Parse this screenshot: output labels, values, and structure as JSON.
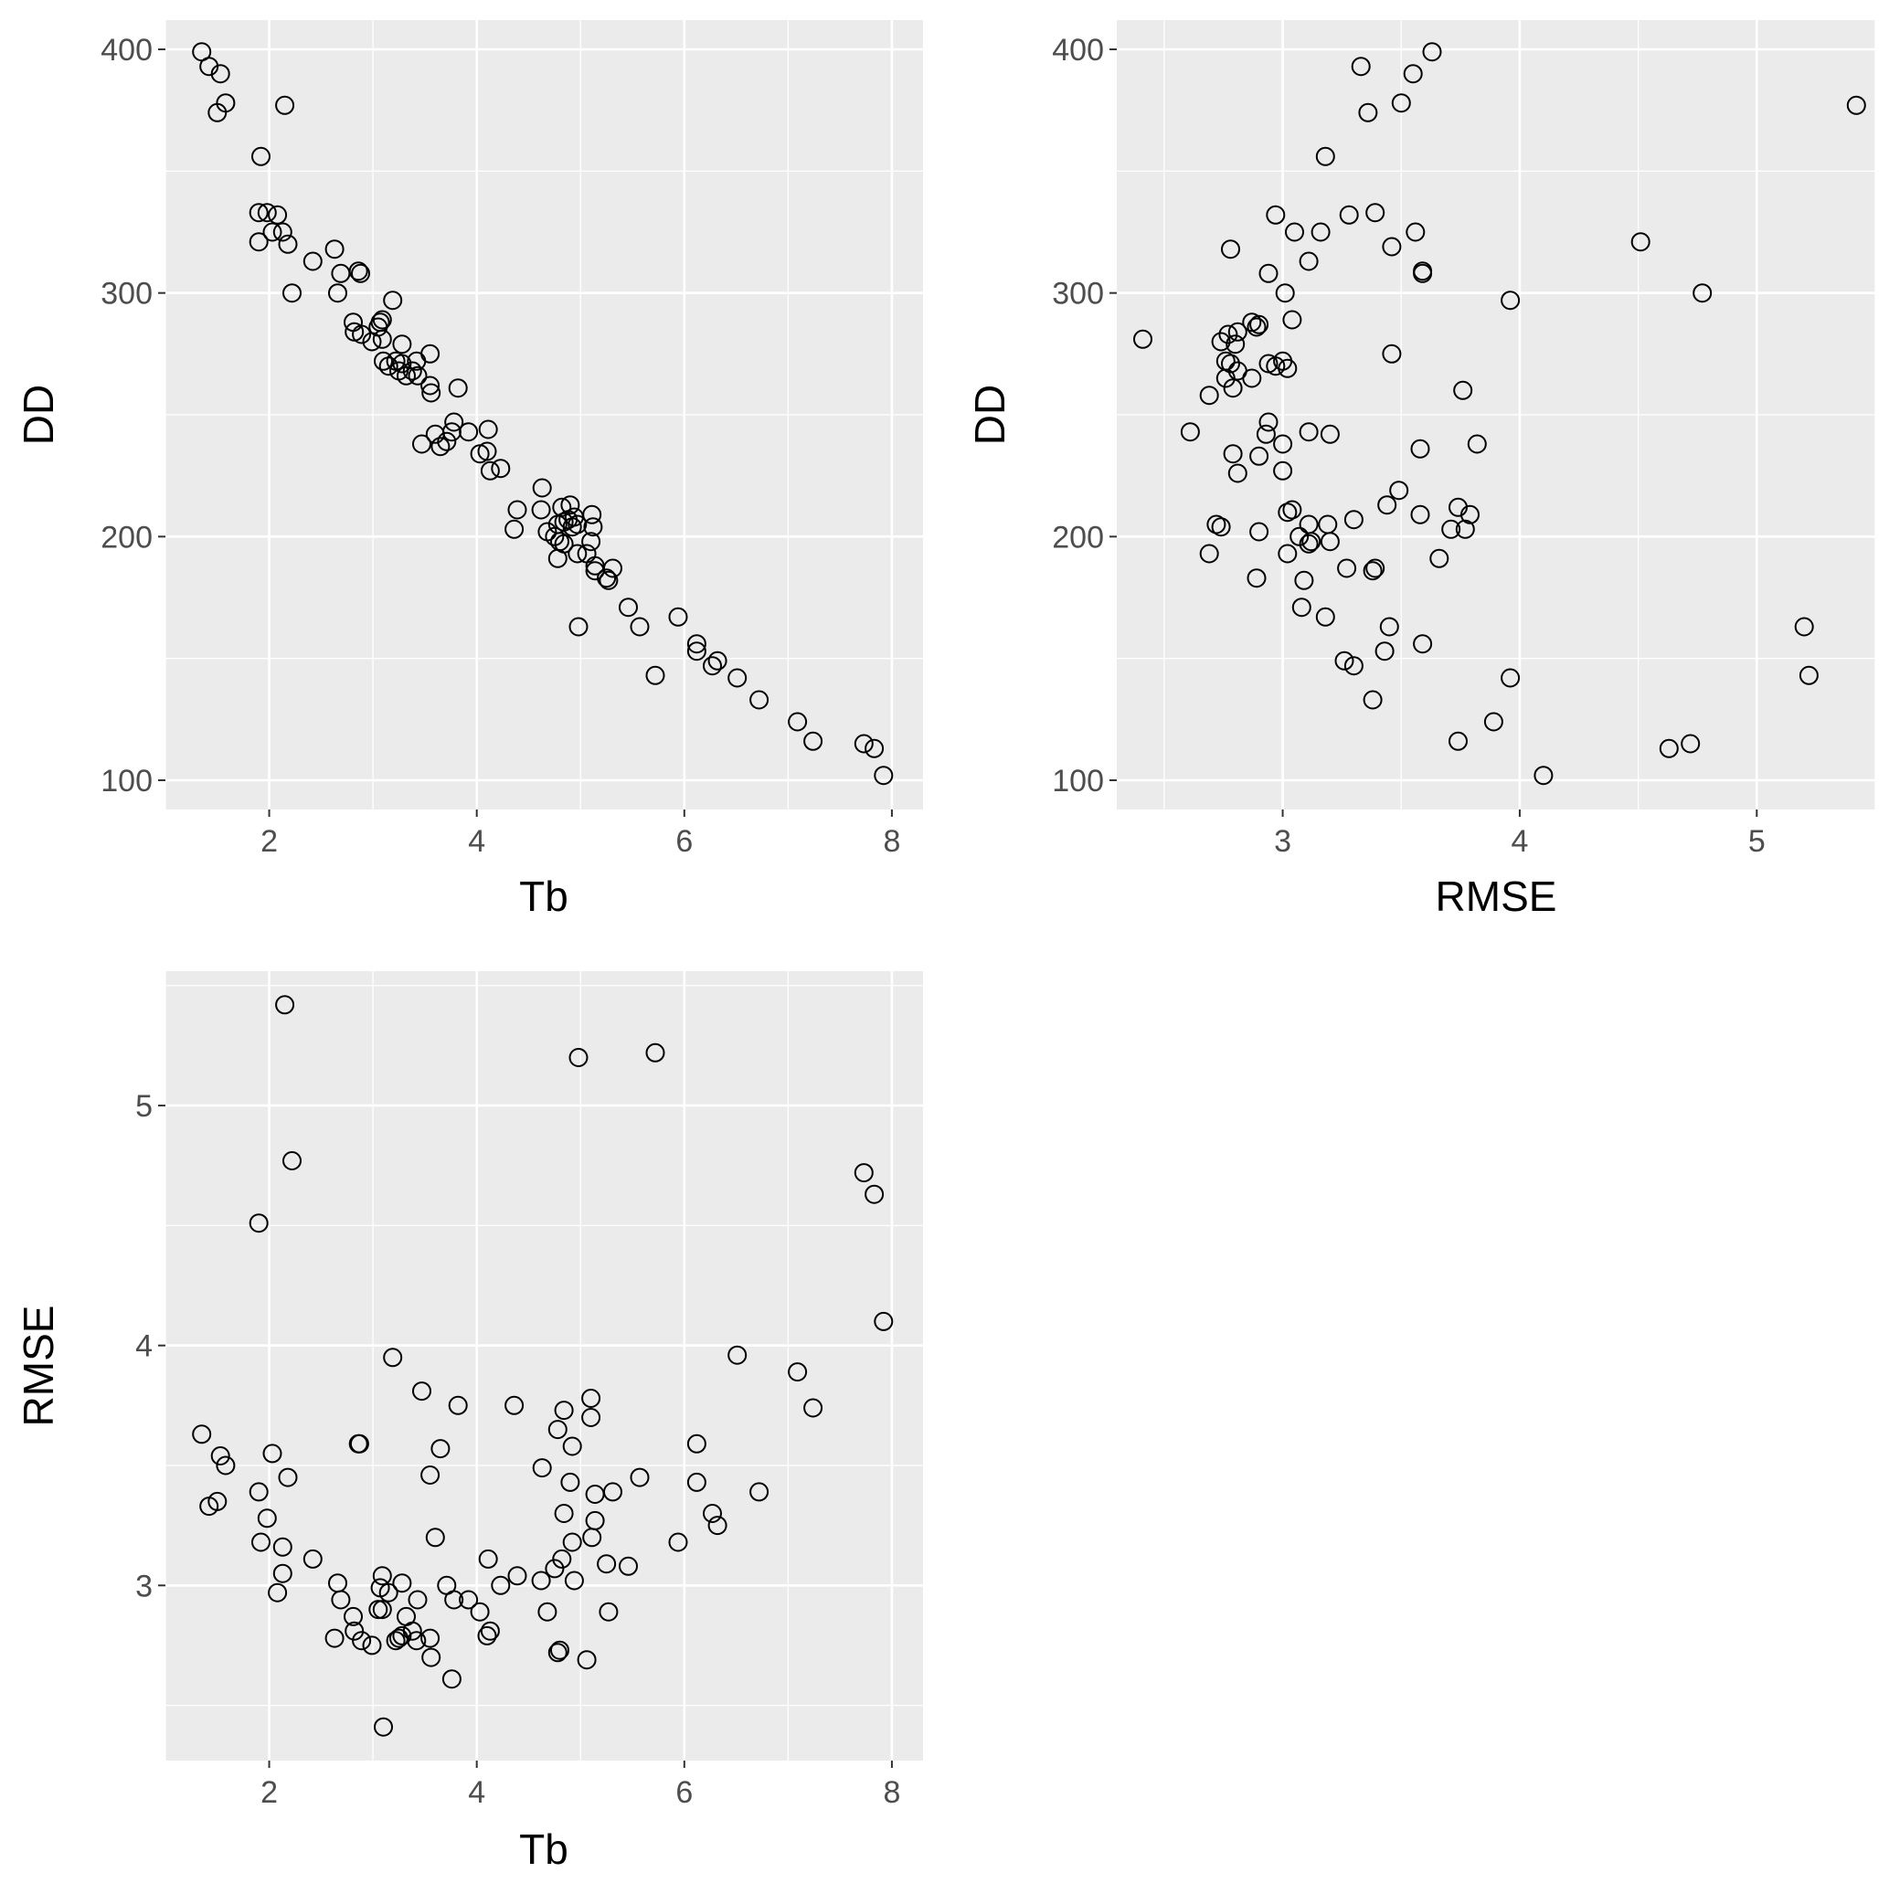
{
  "chart_data": [
    {
      "type": "scatter",
      "title": "",
      "xlabel": "Tb",
      "ylabel": "DD",
      "xlim": [
        1.0,
        8.3
      ],
      "ylim": [
        88,
        412
      ],
      "x_ticks": [
        2,
        4,
        6,
        8
      ],
      "y_ticks": [
        100,
        200,
        300,
        400
      ],
      "grid": true,
      "points": [
        [
          1.35,
          399
        ],
        [
          1.42,
          393
        ],
        [
          1.5,
          374
        ],
        [
          1.53,
          390
        ],
        [
          1.58,
          378
        ],
        [
          2.15,
          377
        ],
        [
          1.92,
          356
        ],
        [
          1.9,
          333
        ],
        [
          1.98,
          333
        ],
        [
          2.08,
          332
        ],
        [
          2.03,
          325
        ],
        [
          2.13,
          325
        ],
        [
          1.9,
          321
        ],
        [
          2.18,
          320
        ],
        [
          2.42,
          313
        ],
        [
          2.63,
          318
        ],
        [
          2.69,
          308
        ],
        [
          2.86,
          309
        ],
        [
          2.88,
          308
        ],
        [
          2.22,
          300
        ],
        [
          2.66,
          300
        ],
        [
          2.81,
          288
        ],
        [
          3.07,
          288
        ],
        [
          3.09,
          289
        ],
        [
          3.05,
          286
        ],
        [
          3.19,
          297
        ],
        [
          2.82,
          284
        ],
        [
          2.89,
          283
        ],
        [
          2.99,
          280
        ],
        [
          3.09,
          281
        ],
        [
          3.28,
          279
        ],
        [
          3.55,
          275
        ],
        [
          3.22,
          272
        ],
        [
          3.1,
          272
        ],
        [
          3.15,
          270
        ],
        [
          3.28,
          271
        ],
        [
          3.25,
          268
        ],
        [
          3.32,
          266
        ],
        [
          3.38,
          268
        ],
        [
          3.42,
          272
        ],
        [
          3.43,
          266
        ],
        [
          3.55,
          262
        ],
        [
          3.56,
          259
        ],
        [
          3.82,
          261
        ],
        [
          3.78,
          247
        ],
        [
          3.76,
          243
        ],
        [
          3.6,
          242
        ],
        [
          3.92,
          243
        ],
        [
          4.11,
          244
        ],
        [
          3.47,
          238
        ],
        [
          3.65,
          237
        ],
        [
          3.71,
          239
        ],
        [
          4.03,
          234
        ],
        [
          4.1,
          235
        ],
        [
          4.13,
          227
        ],
        [
          4.23,
          228
        ],
        [
          4.63,
          220
        ],
        [
          4.39,
          211
        ],
        [
          4.62,
          211
        ],
        [
          4.82,
          212
        ],
        [
          4.9,
          213
        ],
        [
          4.94,
          208
        ],
        [
          5.11,
          209
        ],
        [
          4.78,
          205
        ],
        [
          4.84,
          206
        ],
        [
          4.88,
          207
        ],
        [
          4.92,
          204
        ],
        [
          4.97,
          205
        ],
        [
          5.12,
          204
        ],
        [
          4.36,
          203
        ],
        [
          4.68,
          202
        ],
        [
          4.75,
          200
        ],
        [
          4.8,
          198
        ],
        [
          4.84,
          197
        ],
        [
          5.1,
          198
        ],
        [
          4.97,
          193
        ],
        [
          5.06,
          193
        ],
        [
          4.78,
          191
        ],
        [
          5.14,
          188
        ],
        [
          5.14,
          186
        ],
        [
          5.31,
          187
        ],
        [
          5.25,
          183
        ],
        [
          5.27,
          182
        ],
        [
          5.46,
          171
        ],
        [
          4.98,
          163
        ],
        [
          5.57,
          163
        ],
        [
          5.94,
          167
        ],
        [
          6.12,
          156
        ],
        [
          6.12,
          153
        ],
        [
          6.27,
          147
        ],
        [
          6.32,
          149
        ],
        [
          5.72,
          143
        ],
        [
          6.51,
          142
        ],
        [
          6.72,
          133
        ],
        [
          7.09,
          124
        ],
        [
          7.24,
          116
        ],
        [
          7.73,
          115
        ],
        [
          7.83,
          113
        ],
        [
          7.92,
          102
        ]
      ]
    },
    {
      "type": "scatter",
      "title": "",
      "xlabel": "RMSE",
      "ylabel": "DD",
      "xlim": [
        2.3,
        5.5
      ],
      "ylim": [
        88,
        412
      ],
      "x_ticks": [
        3,
        4,
        5
      ],
      "y_ticks": [
        100,
        200,
        300,
        400
      ],
      "grid": true,
      "points": [
        [
          3.63,
          399
        ],
        [
          3.33,
          393
        ],
        [
          3.55,
          390
        ],
        [
          3.5,
          378
        ],
        [
          3.36,
          374
        ],
        [
          5.42,
          377
        ],
        [
          3.18,
          356
        ],
        [
          2.97,
          332
        ],
        [
          3.28,
          332
        ],
        [
          3.39,
          333
        ],
        [
          3.05,
          325
        ],
        [
          3.16,
          325
        ],
        [
          3.56,
          325
        ],
        [
          4.51,
          321
        ],
        [
          3.46,
          319
        ],
        [
          2.78,
          318
        ],
        [
          3.11,
          313
        ],
        [
          2.94,
          308
        ],
        [
          3.59,
          309
        ],
        [
          3.59,
          308
        ],
        [
          3.01,
          300
        ],
        [
          4.77,
          300
        ],
        [
          3.96,
          297
        ],
        [
          2.87,
          288
        ],
        [
          3.04,
          289
        ],
        [
          2.89,
          286
        ],
        [
          2.9,
          287
        ],
        [
          2.77,
          283
        ],
        [
          2.81,
          284
        ],
        [
          2.74,
          280
        ],
        [
          2.41,
          281
        ],
        [
          2.8,
          279
        ],
        [
          3.46,
          275
        ],
        [
          2.76,
          272
        ],
        [
          2.78,
          271
        ],
        [
          2.94,
          271
        ],
        [
          2.97,
          270
        ],
        [
          3.0,
          272
        ],
        [
          3.02,
          269
        ],
        [
          2.81,
          268
        ],
        [
          2.76,
          265
        ],
        [
          2.87,
          265
        ],
        [
          2.79,
          261
        ],
        [
          2.69,
          258
        ],
        [
          3.76,
          260
        ],
        [
          2.94,
          247
        ],
        [
          2.61,
          243
        ],
        [
          2.93,
          242
        ],
        [
          3.11,
          243
        ],
        [
          3.2,
          242
        ],
        [
          3.0,
          238
        ],
        [
          3.58,
          236
        ],
        [
          3.82,
          238
        ],
        [
          2.79,
          234
        ],
        [
          2.9,
          233
        ],
        [
          3.0,
          227
        ],
        [
          2.81,
          226
        ],
        [
          3.49,
          219
        ],
        [
          3.44,
          213
        ],
        [
          3.74,
          212
        ],
        [
          3.04,
          211
        ],
        [
          3.02,
          210
        ],
        [
          3.58,
          209
        ],
        [
          3.79,
          209
        ],
        [
          3.3,
          207
        ],
        [
          2.72,
          205
        ],
        [
          2.74,
          204
        ],
        [
          3.11,
          205
        ],
        [
          3.19,
          205
        ],
        [
          3.71,
          203
        ],
        [
          3.77,
          203
        ],
        [
          2.9,
          202
        ],
        [
          3.07,
          200
        ],
        [
          3.12,
          198
        ],
        [
          3.2,
          198
        ],
        [
          3.11,
          197
        ],
        [
          2.69,
          193
        ],
        [
          3.02,
          193
        ],
        [
          3.66,
          191
        ],
        [
          3.27,
          187
        ],
        [
          3.38,
          186
        ],
        [
          3.39,
          187
        ],
        [
          2.89,
          183
        ],
        [
          3.09,
          182
        ],
        [
          3.08,
          171
        ],
        [
          3.18,
          167
        ],
        [
          3.45,
          163
        ],
        [
          5.2,
          163
        ],
        [
          3.59,
          156
        ],
        [
          3.43,
          153
        ],
        [
          3.26,
          149
        ],
        [
          3.3,
          147
        ],
        [
          5.22,
          143
        ],
        [
          3.96,
          142
        ],
        [
          3.38,
          133
        ],
        [
          3.89,
          124
        ],
        [
          3.74,
          116
        ],
        [
          4.72,
          115
        ],
        [
          4.63,
          113
        ],
        [
          4.1,
          102
        ]
      ]
    },
    {
      "type": "scatter",
      "title": "",
      "xlabel": "Tb",
      "ylabel": "RMSE",
      "xlim": [
        1.0,
        8.3
      ],
      "ylim": [
        2.27,
        5.56
      ],
      "x_ticks": [
        2,
        4,
        6,
        8
      ],
      "y_ticks": [
        3,
        4,
        5
      ],
      "grid": true,
      "points": [
        [
          2.15,
          5.42
        ],
        [
          4.98,
          5.2
        ],
        [
          5.72,
          5.22
        ],
        [
          2.22,
          4.77
        ],
        [
          7.73,
          4.72
        ],
        [
          7.83,
          4.63
        ],
        [
          1.9,
          4.51
        ],
        [
          7.92,
          4.1
        ],
        [
          3.19,
          3.95
        ],
        [
          6.51,
          3.96
        ],
        [
          7.09,
          3.89
        ],
        [
          3.47,
          3.81
        ],
        [
          3.82,
          3.75
        ],
        [
          4.36,
          3.75
        ],
        [
          7.24,
          3.74
        ],
        [
          5.1,
          3.78
        ],
        [
          4.84,
          3.73
        ],
        [
          5.1,
          3.7
        ],
        [
          4.78,
          3.65
        ],
        [
          1.35,
          3.63
        ],
        [
          2.86,
          3.59
        ],
        [
          2.87,
          3.59
        ],
        [
          3.65,
          3.57
        ],
        [
          4.92,
          3.58
        ],
        [
          6.12,
          3.59
        ],
        [
          2.03,
          3.55
        ],
        [
          1.53,
          3.54
        ],
        [
          1.58,
          3.5
        ],
        [
          4.63,
          3.49
        ],
        [
          2.18,
          3.45
        ],
        [
          3.55,
          3.46
        ],
        [
          5.57,
          3.45
        ],
        [
          4.9,
          3.43
        ],
        [
          6.12,
          3.43
        ],
        [
          1.9,
          3.39
        ],
        [
          5.14,
          3.38
        ],
        [
          5.31,
          3.39
        ],
        [
          6.72,
          3.39
        ],
        [
          1.42,
          3.33
        ],
        [
          1.5,
          3.35
        ],
        [
          4.84,
          3.3
        ],
        [
          6.27,
          3.3
        ],
        [
          1.98,
          3.28
        ],
        [
          5.14,
          3.27
        ],
        [
          6.32,
          3.25
        ],
        [
          3.6,
          3.2
        ],
        [
          5.11,
          3.2
        ],
        [
          1.92,
          3.18
        ],
        [
          4.92,
          3.18
        ],
        [
          5.94,
          3.18
        ],
        [
          2.13,
          3.16
        ],
        [
          2.42,
          3.11
        ],
        [
          4.11,
          3.11
        ],
        [
          4.82,
          3.11
        ],
        [
          5.25,
          3.09
        ],
        [
          5.46,
          3.08
        ],
        [
          4.75,
          3.07
        ],
        [
          2.13,
          3.05
        ],
        [
          3.09,
          3.04
        ],
        [
          4.39,
          3.04
        ],
        [
          4.62,
          3.02
        ],
        [
          4.94,
          3.02
        ],
        [
          2.66,
          3.01
        ],
        [
          3.28,
          3.01
        ],
        [
          3.71,
          3.0
        ],
        [
          4.23,
          3.0
        ],
        [
          3.07,
          2.99
        ],
        [
          3.15,
          2.97
        ],
        [
          2.08,
          2.97
        ],
        [
          3.43,
          2.94
        ],
        [
          3.78,
          2.94
        ],
        [
          3.92,
          2.94
        ],
        [
          2.69,
          2.94
        ],
        [
          4.03,
          2.89
        ],
        [
          4.68,
          2.89
        ],
        [
          5.27,
          2.89
        ],
        [
          3.05,
          2.9
        ],
        [
          3.09,
          2.9
        ],
        [
          3.32,
          2.87
        ],
        [
          2.81,
          2.87
        ],
        [
          3.38,
          2.81
        ],
        [
          2.82,
          2.81
        ],
        [
          4.13,
          2.81
        ],
        [
          3.28,
          2.79
        ],
        [
          4.1,
          2.79
        ],
        [
          3.25,
          2.78
        ],
        [
          3.55,
          2.78
        ],
        [
          2.63,
          2.78
        ],
        [
          3.42,
          2.77
        ],
        [
          2.89,
          2.77
        ],
        [
          3.22,
          2.77
        ],
        [
          2.99,
          2.75
        ],
        [
          4.8,
          2.73
        ],
        [
          4.78,
          2.72
        ],
        [
          3.56,
          2.7
        ],
        [
          5.06,
          2.69
        ],
        [
          3.76,
          2.61
        ],
        [
          3.1,
          2.41
        ]
      ]
    }
  ]
}
